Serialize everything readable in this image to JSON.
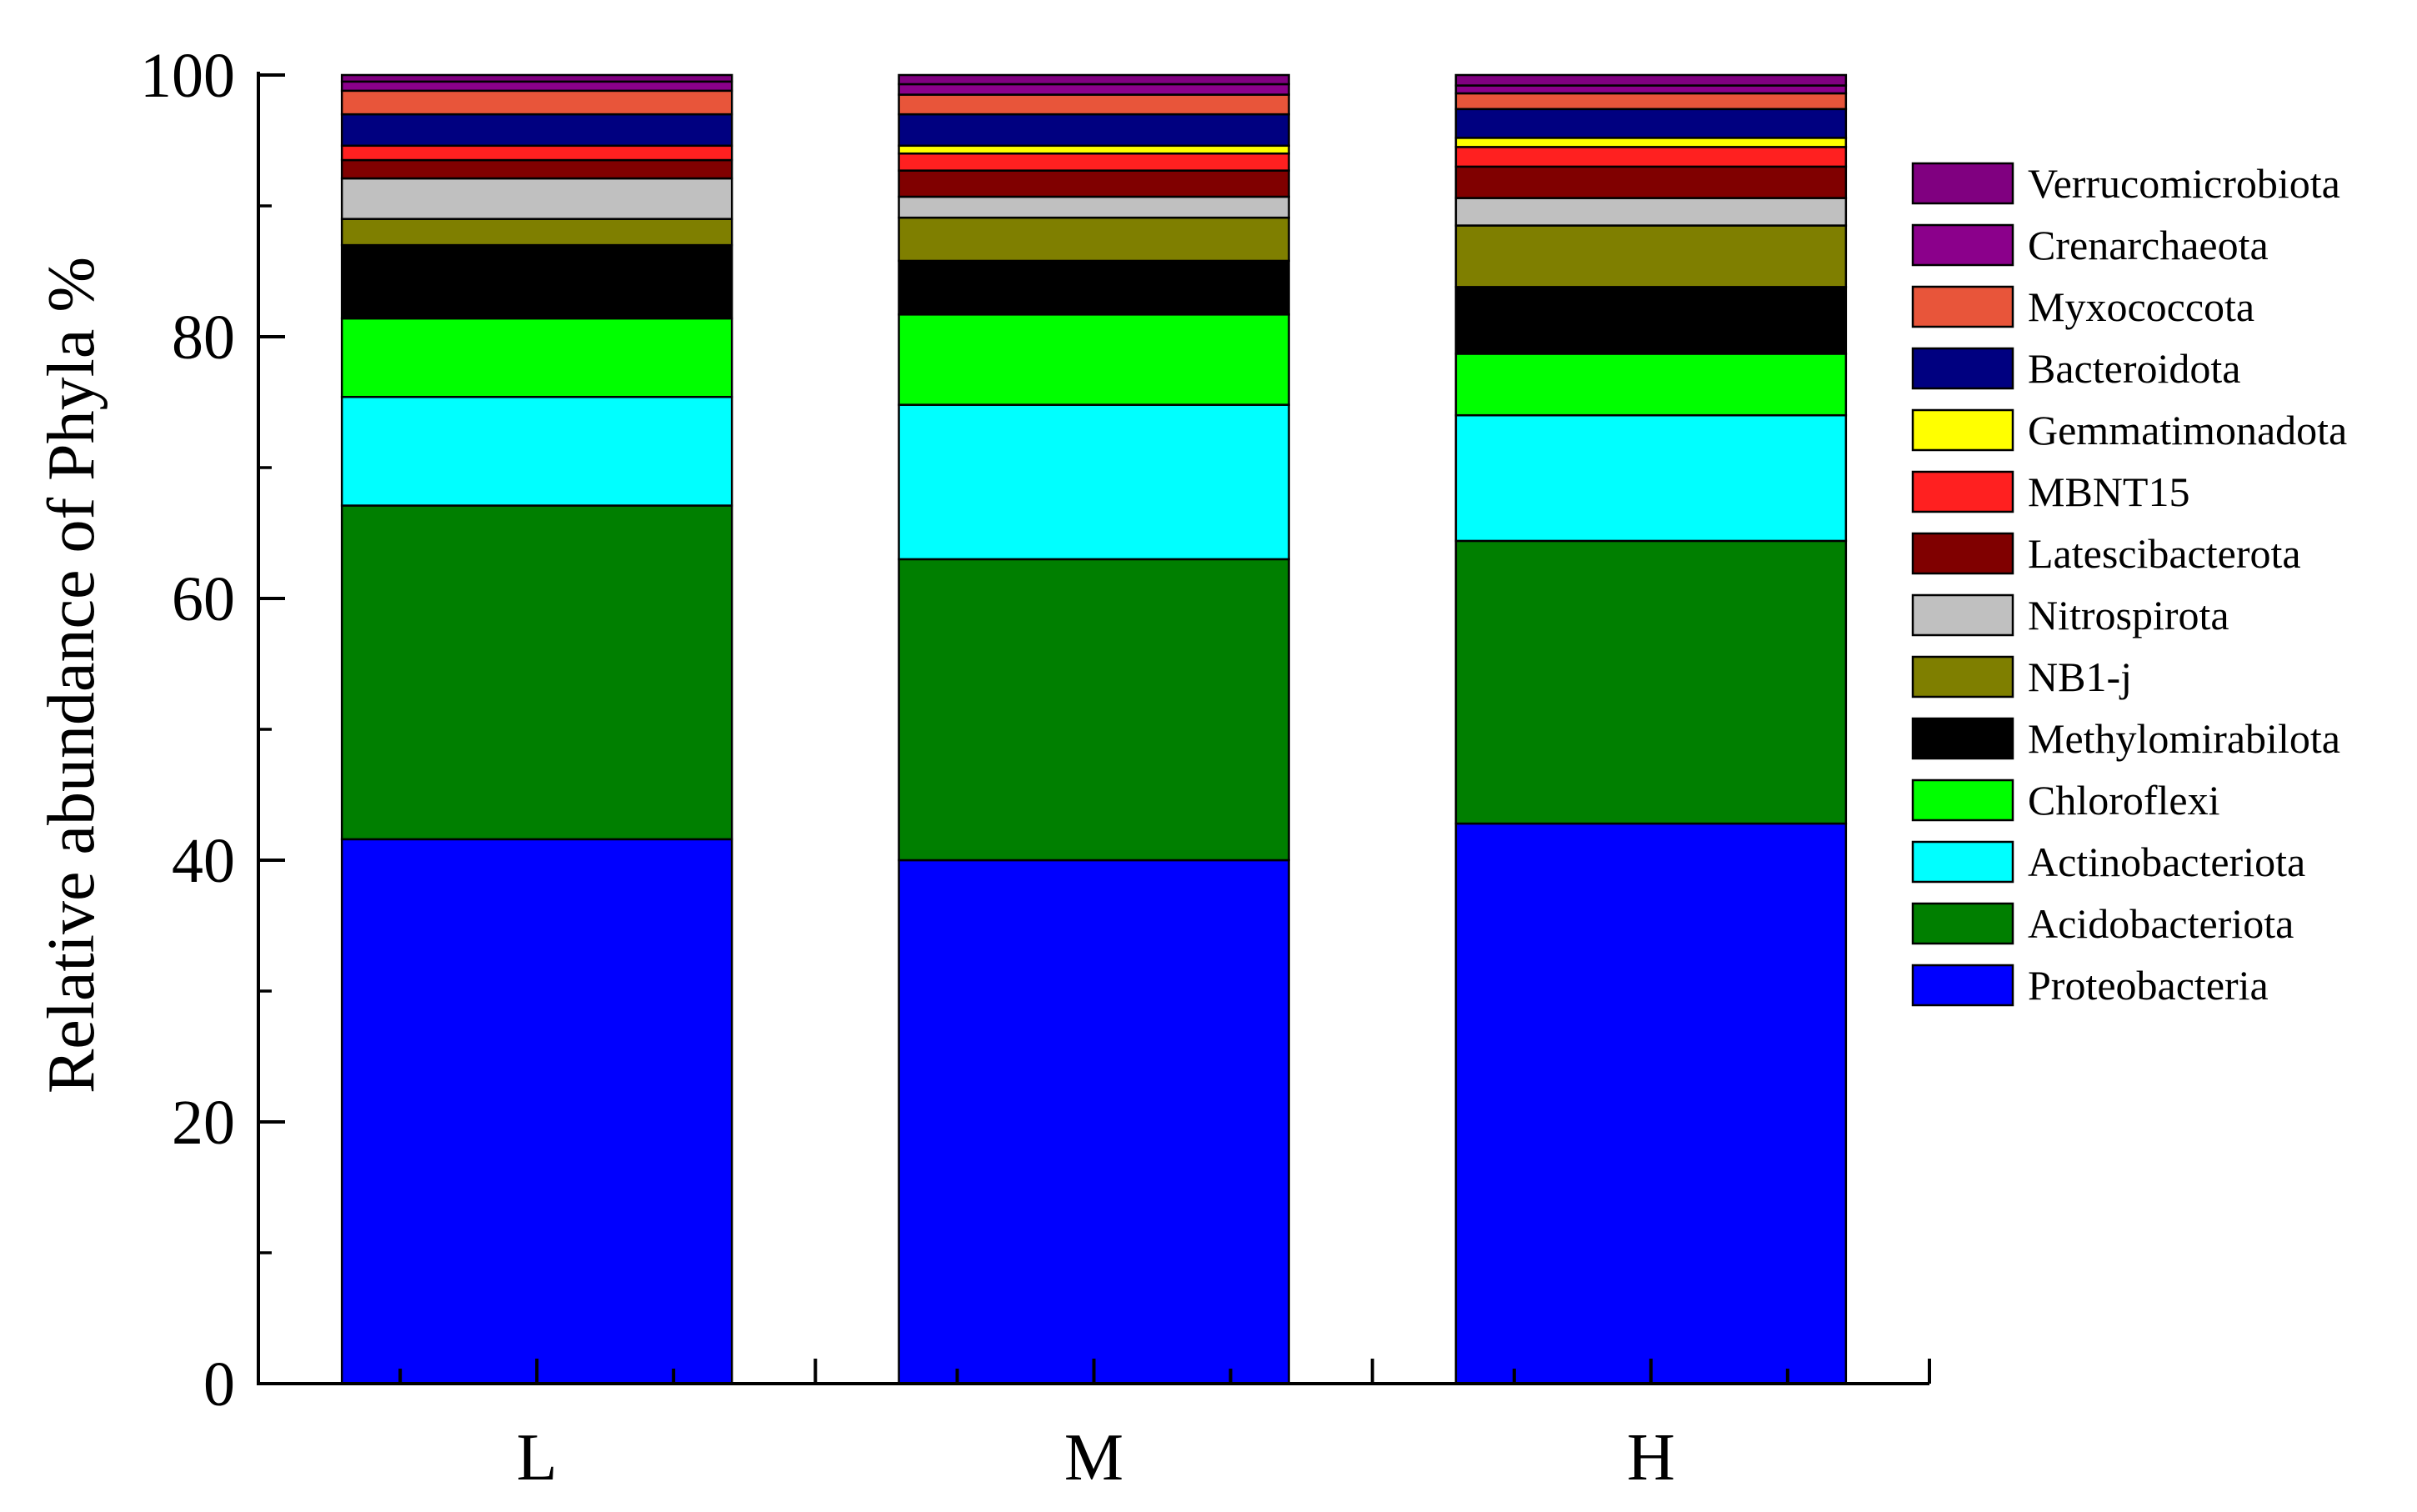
{
  "chart_data": {
    "type": "bar",
    "stacked": true,
    "title": "",
    "xlabel": "",
    "ylabel": "Relative abundance of Phyla %",
    "ylim": [
      0,
      100
    ],
    "yticks": [
      "0",
      "20",
      "40",
      "60",
      "80",
      "100"
    ],
    "categories": [
      "L",
      "M",
      "H"
    ],
    "legend_position": "right",
    "series": [
      {
        "name": "Proteobacteria",
        "color": "#0000FF",
        "values": [
          41.6,
          40.0,
          42.8
        ]
      },
      {
        "name": "Acidobacteriota",
        "color": "#007F00",
        "values": [
          25.5,
          23.0,
          21.6
        ]
      },
      {
        "name": "Actinobacteriota",
        "color": "#00FFFF",
        "values": [
          8.3,
          11.8,
          9.6
        ]
      },
      {
        "name": "Chloroflexi",
        "color": "#00FF00",
        "values": [
          6.0,
          6.9,
          4.7
        ]
      },
      {
        "name": "Methylomirabilota",
        "color": "#000000",
        "values": [
          5.6,
          4.1,
          5.1
        ]
      },
      {
        "name": "NB1-j",
        "color": "#7F7F00",
        "values": [
          2.0,
          3.3,
          4.7
        ]
      },
      {
        "name": "Nitrospirota",
        "color": "#C0C0C0",
        "values": [
          3.1,
          1.6,
          2.1
        ]
      },
      {
        "name": "Latescibacterota",
        "color": "#800000",
        "values": [
          1.4,
          2.0,
          2.4
        ]
      },
      {
        "name": "MBNT15",
        "color": "#FF2020",
        "values": [
          1.1,
          1.3,
          1.5
        ]
      },
      {
        "name": "Gemmatimonadota",
        "color": "#FFFF00",
        "values": [
          0.0,
          0.6,
          0.7
        ]
      },
      {
        "name": "Bacteroidota",
        "color": "#000080",
        "values": [
          2.4,
          2.4,
          2.2
        ]
      },
      {
        "name": "Myxococcota",
        "color": "#E8553A",
        "values": [
          1.8,
          1.5,
          1.2
        ]
      },
      {
        "name": "Crenarchaeota",
        "color": "#8B008B",
        "values": [
          0.7,
          0.8,
          0.6
        ]
      },
      {
        "name": "Verrucomicrobiota",
        "color": "#800080",
        "values": [
          0.5,
          0.7,
          0.8
        ]
      }
    ]
  }
}
